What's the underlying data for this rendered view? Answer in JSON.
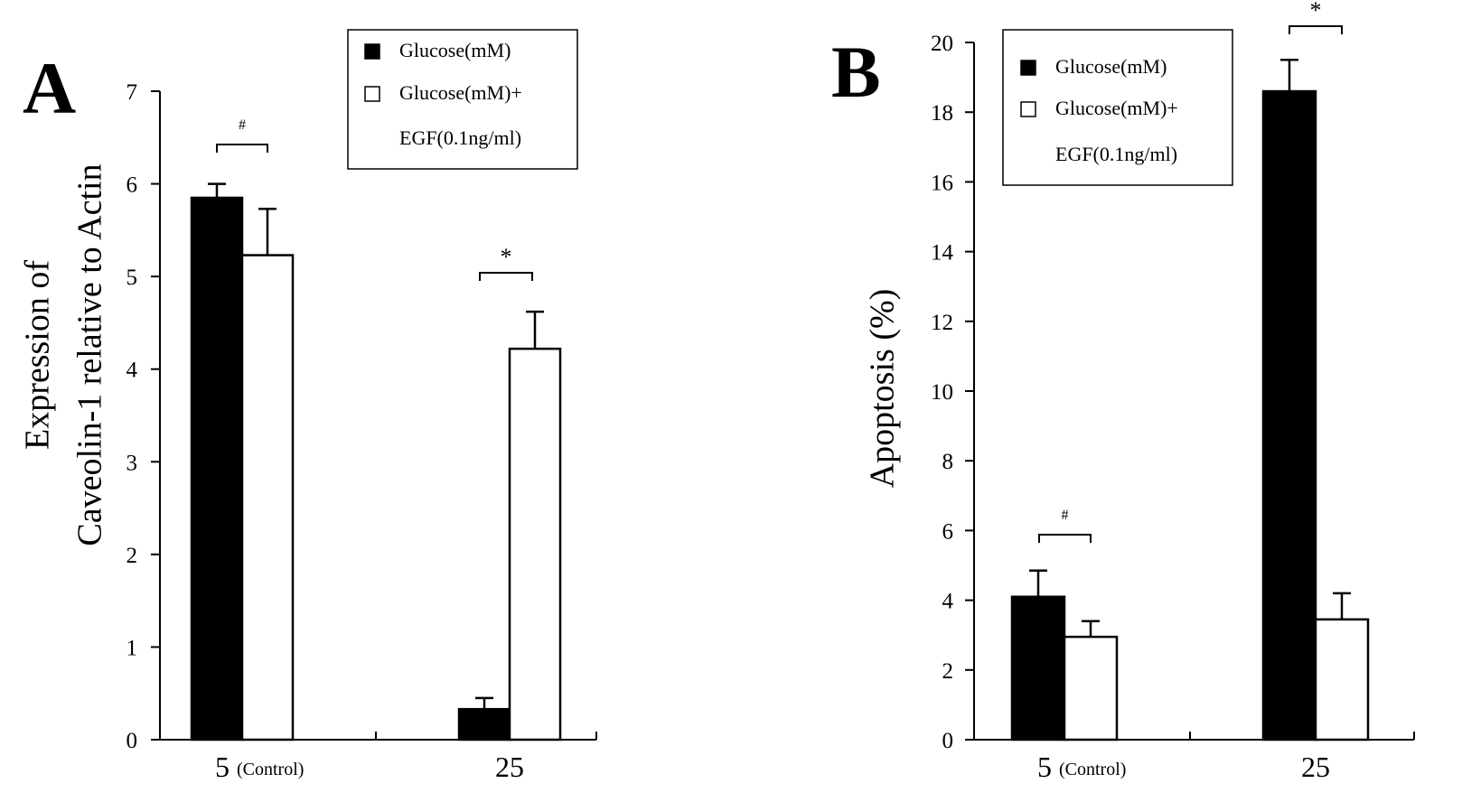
{
  "chart_data": [
    {
      "panel_label": "A",
      "type": "bar",
      "categories": [
        "5",
        "25"
      ],
      "category_notes": [
        "(Control)",
        ""
      ],
      "series": [
        {
          "name": "Glucose(mM)",
          "values": [
            5.85,
            0.33
          ],
          "errors": [
            0.15,
            0.12
          ],
          "color": "#000000"
        },
        {
          "name": "Glucose(mM)+ EGF(0.1ng/ml)",
          "values": [
            5.23,
            4.22
          ],
          "errors": [
            0.5,
            0.4
          ],
          "color": "#ffffff"
        }
      ],
      "ylabel_lines": [
        "Expression of",
        "Caveolin-1 relative to Actin"
      ],
      "ylim": [
        0,
        7
      ],
      "yticks": [
        "0",
        "1",
        "2",
        "3",
        "4",
        "5",
        "6",
        "7"
      ],
      "legend_lines": [
        "Glucose(mM)",
        "Glucose(mM)+",
        "EGF(0.1ng/ml)"
      ],
      "legend_position": "top-right",
      "grid": false,
      "annotations": [
        {
          "text": "#",
          "category_index": 0
        },
        {
          "text": "*",
          "category_index": 1
        }
      ]
    },
    {
      "panel_label": "B",
      "type": "bar",
      "categories": [
        "5",
        "25"
      ],
      "category_notes": [
        "(Control)",
        ""
      ],
      "series": [
        {
          "name": "Glucose(mM)",
          "values": [
            4.1,
            18.6
          ],
          "errors": [
            0.75,
            0.9
          ],
          "color": "#000000"
        },
        {
          "name": "Glucose(mM)+ EGF(0.1ng/ml)",
          "values": [
            2.95,
            3.45
          ],
          "errors": [
            0.45,
            0.75
          ],
          "color": "#ffffff"
        }
      ],
      "ylabel_lines": [
        "Apoptosis (%)"
      ],
      "ylim": [
        0,
        20
      ],
      "yticks": [
        "0",
        "2",
        "4",
        "6",
        "8",
        "10",
        "12",
        "14",
        "16",
        "18",
        "20"
      ],
      "legend_lines": [
        "Glucose(mM)",
        "Glucose(mM)+",
        "EGF(0.1ng/ml)"
      ],
      "legend_position": "top-left",
      "grid": false,
      "annotations": [
        {
          "text": "#",
          "category_index": 0
        },
        {
          "text": "*",
          "category_index": 1
        }
      ]
    }
  ]
}
